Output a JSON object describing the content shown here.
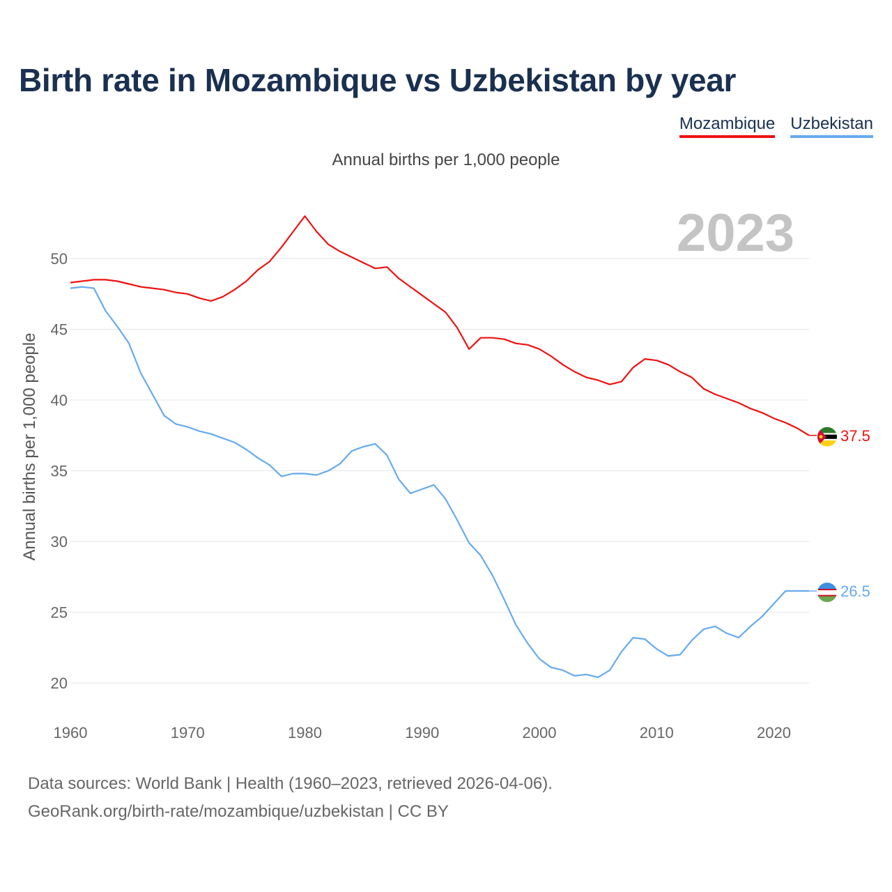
{
  "title": "Birth rate in Mozambique vs Uzbekistan by year",
  "subtitle": "Annual births per 1,000 people",
  "year_watermark": "2023",
  "legend": [
    {
      "name": "Mozambique",
      "color": "#ee1111"
    },
    {
      "name": "Uzbekistan",
      "color": "#66aaee"
    }
  ],
  "footer": {
    "sources": "Data sources: World Bank | Health (1960–2023, retrieved 2026-04-06).",
    "attribution": "GeoRank.org/birth-rate/mozambique/uzbekistan | CC BY"
  },
  "chart_data": {
    "type": "line",
    "title": "Birth rate in Mozambique vs Uzbekistan by year",
    "xlabel": "",
    "ylabel": "Annual births per 1,000 people",
    "xlim": [
      1960,
      2023
    ],
    "ylim": [
      20,
      53
    ],
    "xticks": [
      1960,
      1970,
      1980,
      1990,
      2000,
      2010,
      2020
    ],
    "yticks": [
      20,
      25,
      30,
      35,
      40,
      45,
      50
    ],
    "grid": true,
    "x": [
      1960,
      1961,
      1962,
      1963,
      1964,
      1965,
      1966,
      1967,
      1968,
      1969,
      1970,
      1971,
      1972,
      1973,
      1974,
      1975,
      1976,
      1977,
      1978,
      1979,
      1980,
      1981,
      1982,
      1983,
      1984,
      1985,
      1986,
      1987,
      1988,
      1989,
      1990,
      1991,
      1992,
      1993,
      1994,
      1995,
      1996,
      1997,
      1998,
      1999,
      2000,
      2001,
      2002,
      2003,
      2004,
      2005,
      2006,
      2007,
      2008,
      2009,
      2010,
      2011,
      2012,
      2013,
      2014,
      2015,
      2016,
      2017,
      2018,
      2019,
      2020,
      2021,
      2022,
      2023
    ],
    "series": [
      {
        "name": "Mozambique",
        "color": "#ee1111",
        "end_label": "37.5",
        "values": [
          48.3,
          48.4,
          48.5,
          48.5,
          48.4,
          48.2,
          48.0,
          47.9,
          47.8,
          47.6,
          47.5,
          47.2,
          47.0,
          47.3,
          47.8,
          48.4,
          49.2,
          49.8,
          50.8,
          51.9,
          53.0,
          51.9,
          51.0,
          50.5,
          50.1,
          49.7,
          49.3,
          49.4,
          48.6,
          48.0,
          47.4,
          46.8,
          46.2,
          45.1,
          43.6,
          44.4,
          44.4,
          44.3,
          44.0,
          43.9,
          43.6,
          43.1,
          42.5,
          42.0,
          41.6,
          41.4,
          41.1,
          41.3,
          42.3,
          42.9,
          42.8,
          42.5,
          42.0,
          41.6,
          40.8,
          40.4,
          40.1,
          39.8,
          39.4,
          39.1,
          38.7,
          38.4,
          38.0,
          37.5
        ]
      },
      {
        "name": "Uzbekistan",
        "color": "#66aaee",
        "end_label": "26.5",
        "values": [
          47.9,
          48.0,
          47.9,
          46.3,
          45.2,
          44.0,
          41.9,
          40.4,
          38.9,
          38.3,
          38.1,
          37.8,
          37.6,
          37.3,
          37.0,
          36.5,
          35.9,
          35.4,
          34.6,
          34.8,
          34.8,
          34.7,
          35.0,
          35.5,
          36.4,
          36.7,
          36.9,
          36.1,
          34.4,
          33.4,
          33.7,
          34.0,
          33.0,
          31.5,
          29.9,
          29.0,
          27.6,
          25.9,
          24.1,
          22.8,
          21.7,
          21.1,
          20.9,
          20.5,
          20.6,
          20.4,
          20.9,
          22.2,
          23.2,
          23.1,
          22.4,
          21.9,
          22.0,
          23.0,
          23.8,
          24.0,
          23.5,
          23.2,
          24.0,
          24.7,
          25.6,
          26.5,
          26.5,
          26.5
        ]
      }
    ]
  }
}
